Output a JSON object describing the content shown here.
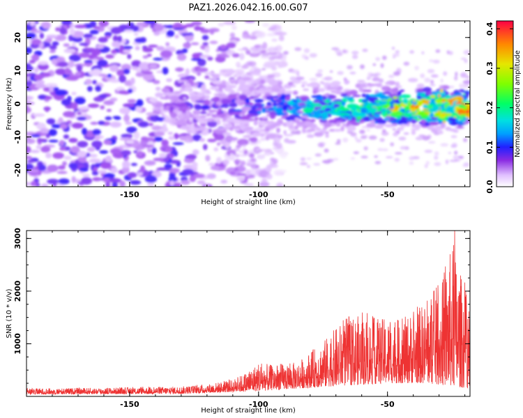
{
  "title": "PAZ1.2026.042.16.00.G07",
  "chart_data": [
    {
      "type": "heatmap",
      "name": "spectrogram",
      "xlabel": "Height of straight line (km)",
      "ylabel": "Frequency (Hz)",
      "xlim": [
        -190,
        -18
      ],
      "ylim": [
        -25,
        25
      ],
      "x_ticks": [
        -150,
        -100,
        -50
      ],
      "y_ticks": [
        -20,
        -10,
        0,
        10,
        20
      ],
      "colorbar": {
        "label": "Normalized spectral amplitude",
        "range": [
          0.0,
          0.42
        ],
        "ticks": [
          0.0,
          0.1,
          0.2,
          0.3,
          0.4
        ],
        "tick_labels": [
          "0.0",
          "0.1",
          "0.2",
          "0.3",
          "0.4"
        ]
      },
      "features": {
        "signal_band_center_hz": -1,
        "signal_band_halfwidth_hz": 6,
        "signal_strengthens_toward": -18,
        "noise_covers_range_km": [
          -190,
          -100
        ],
        "peak_amplitude": 0.42
      },
      "background_color": "#ffffff"
    },
    {
      "type": "line",
      "name": "snr",
      "xlabel": "Height of straight line (km)",
      "ylabel": "SNR (10 * v/v)",
      "xlim": [
        -190,
        -18
      ],
      "ylim": [
        0,
        3150
      ],
      "x_ticks": [
        -150,
        -100,
        -50
      ],
      "y_ticks": [
        1000,
        2000,
        3000
      ],
      "line_color": "#ee3333",
      "envelope": {
        "x": [
          -190,
          -170,
          -150,
          -130,
          -120,
          -110,
          -105,
          -100,
          -95,
          -85,
          -75,
          -65,
          -55,
          -45,
          -35,
          -28,
          -25,
          -22,
          -18
        ],
        "y": [
          150,
          160,
          170,
          190,
          230,
          320,
          450,
          650,
          600,
          650,
          1050,
          1550,
          1500,
          1450,
          1800,
          2300,
          2900,
          2400,
          1800
        ]
      },
      "baseline": {
        "x": [
          -190,
          -130,
          -100,
          -75,
          -50,
          -35,
          -18
        ],
        "y": [
          40,
          50,
          100,
          180,
          250,
          250,
          150
        ]
      },
      "peak_value": 3150
    }
  ]
}
